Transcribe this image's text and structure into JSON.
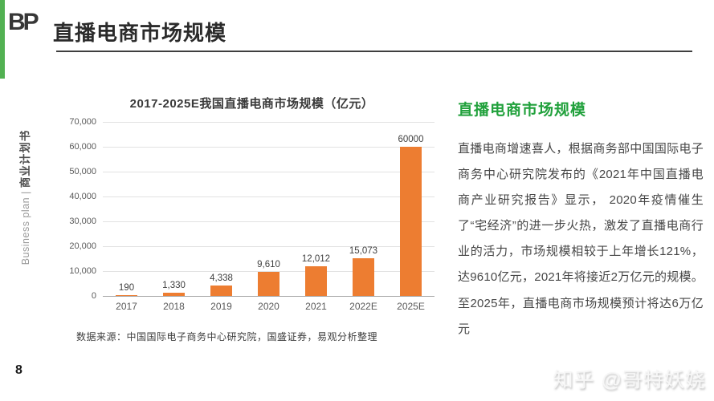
{
  "page": {
    "logo": "BP",
    "title": "直播电商市场规模",
    "page_number": "8",
    "watermark": "知乎 @哥特妖娆",
    "accent_green": "#21A13C",
    "edge_bar_color": "#52B152"
  },
  "sidebar": {
    "en": "Business plan | ",
    "cn": "商业计划书"
  },
  "chart_data": {
    "type": "bar",
    "title": "2017-2025E我国直播电商市场规模（亿元）",
    "categories": [
      "2017",
      "2018",
      "2019",
      "2020",
      "2021",
      "2022E",
      "2025E"
    ],
    "values": [
      190,
      1330,
      4338,
      9610,
      12012,
      15073,
      60000
    ],
    "data_labels": [
      "190",
      "1,330",
      "4,338",
      "9,610",
      "12,012",
      "15,073",
      "60000"
    ],
    "y_ticks": [
      "70,000",
      "60,000",
      "50,000",
      "40,000",
      "30,000",
      "20,000",
      "10,000",
      "0"
    ],
    "ylim": [
      0,
      70000
    ],
    "bar_color": "#ED7D31",
    "grid": true,
    "legend": "none",
    "source": "数据来源：中国国际电子商务中心研究院，国盛证券，易观分析整理"
  },
  "panel": {
    "heading": "直播电商市场规模",
    "body": "直播电商增速喜人，根据商务部中国国际电子商务中心研究院发布的《2021年中国直播电商产业研究报告》显示， 2020年疫情催生了“宅经济”的进一步火热，激发了直播电商行业的活力，市场规模相较于上年增长121%，达9610亿元，2021年将接近2万亿元的规模。至2025年，直播电商市场规模预计将达6万亿元"
  }
}
